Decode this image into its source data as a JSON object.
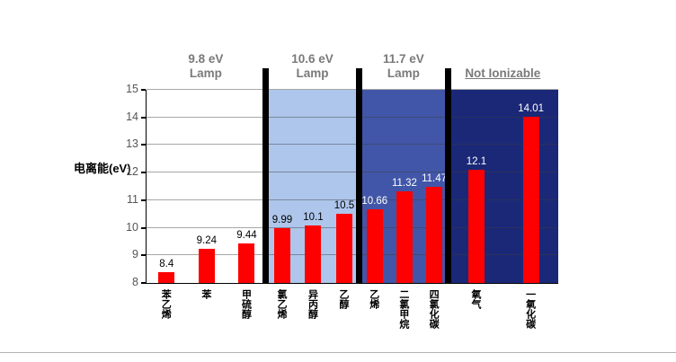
{
  "chart_data": {
    "type": "bar",
    "title": "",
    "ylabel": "电离能(eV)",
    "xlabel": "",
    "ylim": [
      8,
      15
    ],
    "yticks": [
      8,
      9,
      10,
      11,
      12,
      13,
      14,
      15
    ],
    "grid": "horizontal",
    "legend": "none",
    "bar_color": "#ff0000",
    "categories": [
      "苯乙烯",
      "苯",
      "甲硫醇",
      "氯乙烯",
      "异丙醇",
      "乙醇",
      "乙烯",
      "二氯甲烷",
      "四氯化碳",
      "氧气",
      "一氧化碳"
    ],
    "values": [
      8.4,
      9.24,
      9.44,
      9.99,
      10.1,
      10.5,
      10.66,
      11.32,
      11.47,
      12.1,
      14.01
    ],
    "value_labels": [
      "8.4",
      "9.24",
      "9.44",
      "9.99",
      "10.1",
      "10.5",
      "10.66",
      "11.32",
      "11.47",
      "12.1",
      "14.01"
    ],
    "groups": [
      {
        "title_line1": "9.8 eV",
        "title_line2": "Lamp",
        "underline": false,
        "bar_indexes": [
          0,
          1,
          2
        ],
        "bg_color": "#ffffff",
        "value_label_color": "#000000",
        "width_pct": 29.2
      },
      {
        "title_line1": "10.6 eV",
        "title_line2": "Lamp",
        "underline": false,
        "bar_indexes": [
          3,
          4,
          5
        ],
        "bg_color": "#aec6ec",
        "value_label_color": "#000000",
        "width_pct": 22.6
      },
      {
        "title_line1": "11.7 eV",
        "title_line2": "Lamp",
        "underline": false,
        "bar_indexes": [
          6,
          7,
          8
        ],
        "bg_color": "#4156a8",
        "value_label_color": "#ffffff",
        "width_pct": 21.7
      },
      {
        "title_line1": "Not Ionizable",
        "title_line2": "",
        "underline": true,
        "bar_indexes": [
          9,
          10
        ],
        "bg_color": "#1b2878",
        "value_label_color": "#ffffff",
        "width_pct": 26.5
      }
    ]
  }
}
